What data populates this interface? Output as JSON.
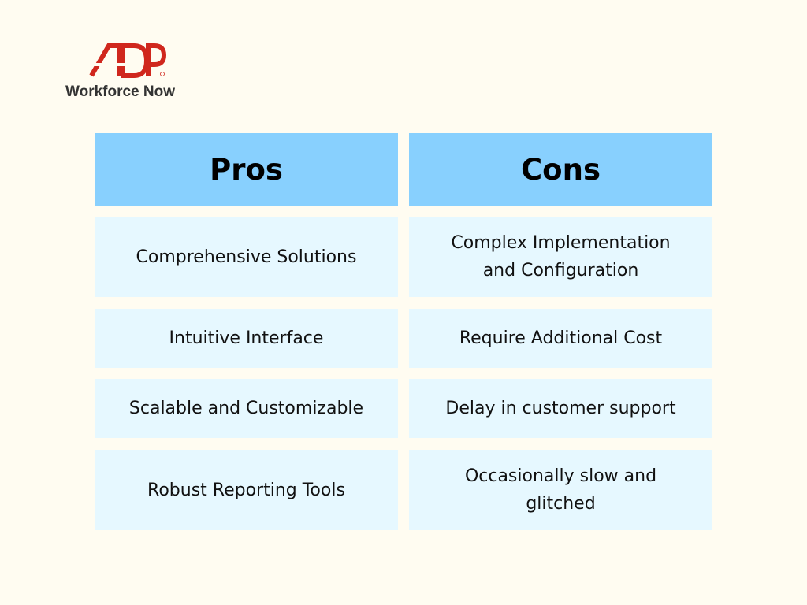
{
  "logo": {
    "text": "ADP",
    "brand_color": "#d0271d",
    "subtitle": "Workforce Now"
  },
  "table": {
    "headers": [
      "Pros",
      "Cons"
    ],
    "header_color": "#88d0fe",
    "cell_color": "#e6f8ff",
    "rows": [
      [
        "Comprehensive Solutions",
        "Complex Implementation and Configuration"
      ],
      [
        "Intuitive Interface",
        "Require Additional Cost"
      ],
      [
        "Scalable and Customizable",
        "Delay in customer support"
      ],
      [
        "Robust Reporting Tools",
        "Occasionally slow and glitched"
      ]
    ]
  }
}
